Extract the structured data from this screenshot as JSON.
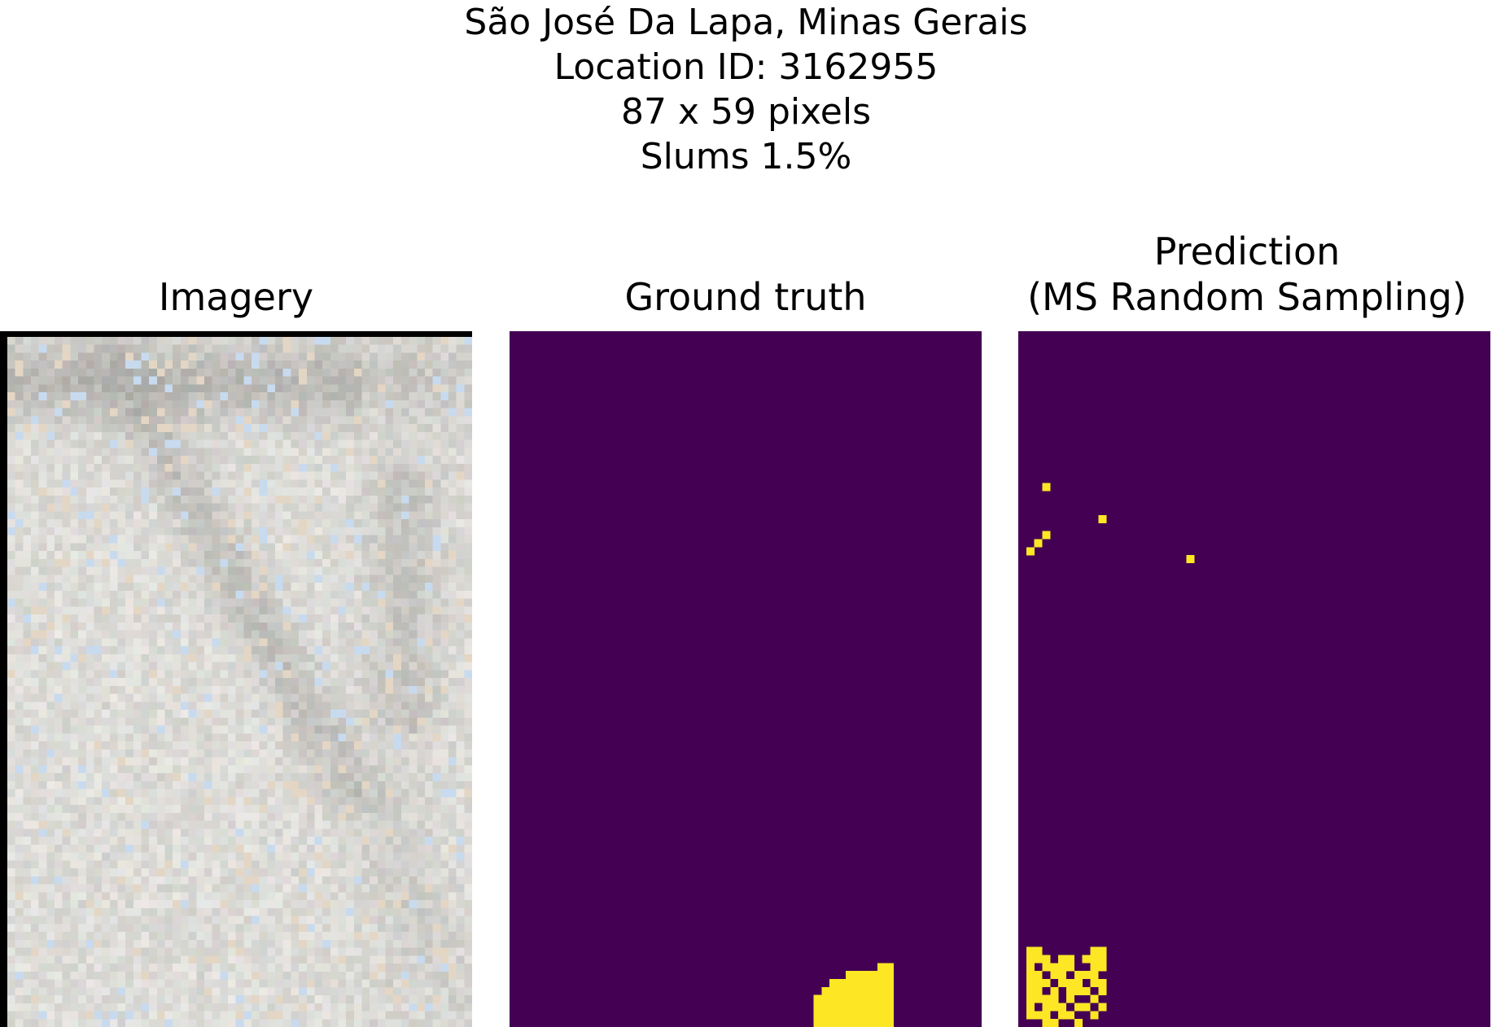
{
  "header": {
    "line1": "São José Da Lapa, Minas Gerais",
    "line2": "Location ID: 3162955",
    "line3": "87 x 59 pixels",
    "line4": "Slums 1.5%"
  },
  "panels": {
    "imagery": {
      "title": "Imagery"
    },
    "ground_truth": {
      "title": "Ground truth"
    },
    "prediction": {
      "title_line1": "Prediction",
      "title_line2": "(MS Random Sampling)"
    }
  },
  "grid": {
    "cols": 59,
    "rows": 87
  },
  "colors": {
    "background_class": "#440154",
    "slum_class": "#fde725",
    "imagery_base": "#d9dad4"
  },
  "ground_truth_slum_cells": [
    [
      46,
      79
    ],
    [
      47,
      79
    ],
    [
      42,
      80
    ],
    [
      43,
      80
    ],
    [
      44,
      80
    ],
    [
      45,
      80
    ],
    [
      46,
      80
    ],
    [
      47,
      80
    ],
    [
      40,
      81
    ],
    [
      41,
      81
    ],
    [
      42,
      81
    ],
    [
      43,
      81
    ],
    [
      44,
      81
    ],
    [
      45,
      81
    ],
    [
      46,
      81
    ],
    [
      47,
      81
    ],
    [
      39,
      82
    ],
    [
      40,
      82
    ],
    [
      41,
      82
    ],
    [
      42,
      82
    ],
    [
      43,
      82
    ],
    [
      44,
      82
    ],
    [
      45,
      82
    ],
    [
      46,
      82
    ],
    [
      47,
      82
    ],
    [
      38,
      83
    ],
    [
      39,
      83
    ],
    [
      40,
      83
    ],
    [
      41,
      83
    ],
    [
      42,
      83
    ],
    [
      43,
      83
    ],
    [
      44,
      83
    ],
    [
      45,
      83
    ],
    [
      46,
      83
    ],
    [
      47,
      83
    ],
    [
      38,
      84
    ],
    [
      39,
      84
    ],
    [
      40,
      84
    ],
    [
      41,
      84
    ],
    [
      42,
      84
    ],
    [
      43,
      84
    ],
    [
      44,
      84
    ],
    [
      45,
      84
    ],
    [
      46,
      84
    ],
    [
      47,
      84
    ],
    [
      38,
      85
    ],
    [
      39,
      85
    ],
    [
      40,
      85
    ],
    [
      41,
      85
    ],
    [
      42,
      85
    ],
    [
      43,
      85
    ],
    [
      44,
      85
    ],
    [
      45,
      85
    ],
    [
      46,
      85
    ],
    [
      47,
      85
    ],
    [
      38,
      86
    ],
    [
      39,
      86
    ],
    [
      40,
      86
    ],
    [
      41,
      86
    ],
    [
      42,
      86
    ],
    [
      43,
      86
    ],
    [
      44,
      86
    ],
    [
      45,
      86
    ],
    [
      46,
      86
    ],
    [
      47,
      86
    ]
  ],
  "prediction_slum_cells": [
    [
      3,
      19
    ],
    [
      10,
      23
    ],
    [
      3,
      25
    ],
    [
      2,
      26
    ],
    [
      1,
      27
    ],
    [
      21,
      28
    ],
    [
      1,
      77
    ],
    [
      2,
      77
    ],
    [
      9,
      77
    ],
    [
      10,
      77
    ],
    [
      1,
      78
    ],
    [
      2,
      78
    ],
    [
      3,
      78
    ],
    [
      5,
      78
    ],
    [
      6,
      78
    ],
    [
      8,
      78
    ],
    [
      9,
      78
    ],
    [
      10,
      78
    ],
    [
      1,
      79
    ],
    [
      3,
      79
    ],
    [
      4,
      79
    ],
    [
      5,
      79
    ],
    [
      6,
      79
    ],
    [
      9,
      79
    ],
    [
      10,
      79
    ],
    [
      1,
      80
    ],
    [
      2,
      80
    ],
    [
      4,
      80
    ],
    [
      5,
      80
    ],
    [
      7,
      80
    ],
    [
      8,
      80
    ],
    [
      9,
      80
    ],
    [
      1,
      81
    ],
    [
      2,
      81
    ],
    [
      3,
      81
    ],
    [
      5,
      81
    ],
    [
      6,
      81
    ],
    [
      7,
      81
    ],
    [
      9,
      81
    ],
    [
      10,
      81
    ],
    [
      1,
      82
    ],
    [
      2,
      82
    ],
    [
      4,
      82
    ],
    [
      6,
      82
    ],
    [
      7,
      82
    ],
    [
      8,
      82
    ],
    [
      10,
      82
    ],
    [
      1,
      83
    ],
    [
      2,
      83
    ],
    [
      3,
      83
    ],
    [
      4,
      83
    ],
    [
      6,
      83
    ],
    [
      9,
      83
    ],
    [
      1,
      84
    ],
    [
      3,
      84
    ],
    [
      4,
      84
    ],
    [
      5,
      84
    ],
    [
      7,
      84
    ],
    [
      8,
      84
    ],
    [
      10,
      84
    ],
    [
      1,
      85
    ],
    [
      2,
      85
    ],
    [
      3,
      85
    ],
    [
      5,
      85
    ],
    [
      6,
      85
    ],
    [
      9,
      85
    ],
    [
      3,
      86
    ],
    [
      4,
      86
    ],
    [
      7,
      86
    ]
  ]
}
